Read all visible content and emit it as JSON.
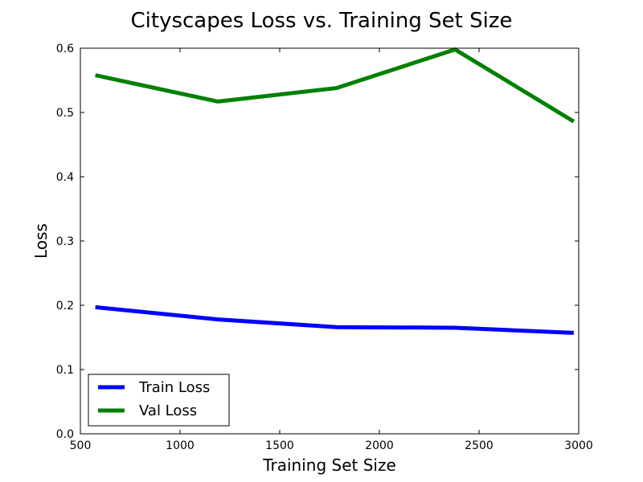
{
  "chart_data": {
    "type": "line",
    "title": "Cityscapes Loss vs. Training Set Size",
    "xlabel": "Training Set Size",
    "ylabel": "Loss",
    "xlim": [
      500,
      3000
    ],
    "ylim": [
      0.0,
      0.6
    ],
    "x_ticks": [
      500,
      1000,
      1500,
      2000,
      2500,
      3000
    ],
    "x_tick_labels": [
      "500",
      "1000",
      "1500",
      "2000",
      "2500",
      "3000"
    ],
    "y_ticks": [
      0.0,
      0.1,
      0.2,
      0.3,
      0.4,
      0.5,
      0.6
    ],
    "y_tick_labels": [
      "0.0",
      "0.1",
      "0.2",
      "0.3",
      "0.4",
      "0.5",
      "0.6"
    ],
    "grid": false,
    "legend_position": "lower-left",
    "x": [
      575,
      1190,
      1785,
      2380,
      2975
    ],
    "series": [
      {
        "name": "Train Loss",
        "color": "#0000ff",
        "values": [
          0.197,
          0.178,
          0.166,
          0.165,
          0.157
        ]
      },
      {
        "name": "Val Loss",
        "color": "#008000",
        "values": [
          0.558,
          0.517,
          0.538,
          0.598,
          0.486
        ]
      }
    ]
  }
}
